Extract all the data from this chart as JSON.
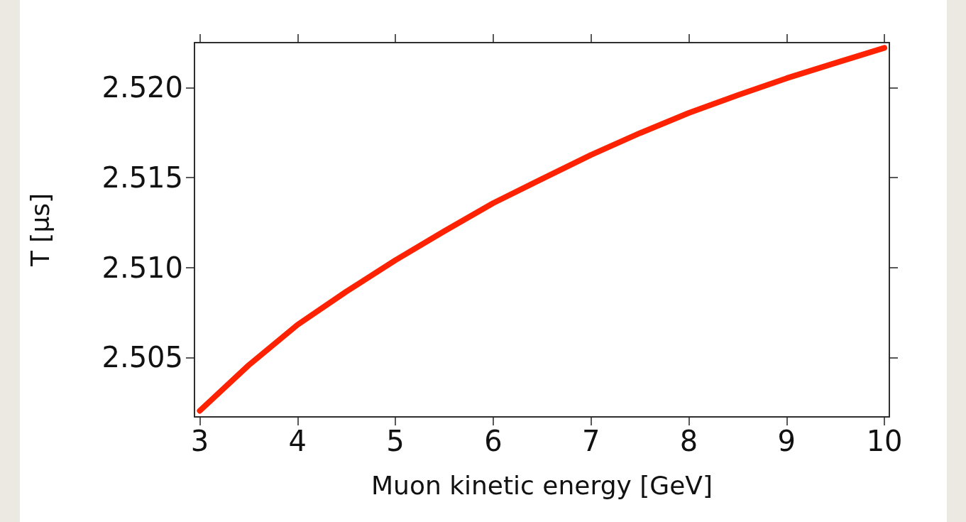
{
  "chart_data": {
    "type": "line",
    "xlabel": "Muon kinetic energy [GeV]",
    "ylabel": "T [μs]",
    "x": [
      3,
      3.5,
      4,
      4.5,
      5,
      5.5,
      6,
      6.5,
      7,
      7.5,
      8,
      8.5,
      9,
      9.5,
      10
    ],
    "series": [
      {
        "color": "#ff2200",
        "values": [
          2.50204,
          2.50457,
          2.50682,
          2.50867,
          2.51041,
          2.51202,
          2.51358,
          2.51493,
          2.51626,
          2.51747,
          2.51859,
          2.51958,
          2.52052,
          2.52137,
          2.52221
        ]
      }
    ],
    "xlim": [
      2.946,
      10.05
    ],
    "xticks": [
      3,
      4,
      5,
      6,
      7,
      8,
      9,
      10
    ],
    "ylim": [
      2.5017,
      2.5225
    ],
    "yticks": [
      {
        "value": 2.505,
        "label": "2.505"
      },
      {
        "value": 2.51,
        "label": "2.510"
      },
      {
        "value": 2.515,
        "label": "2.515"
      },
      {
        "value": 2.52,
        "label": "2.520"
      }
    ],
    "grid": false,
    "line_style": "solid"
  }
}
